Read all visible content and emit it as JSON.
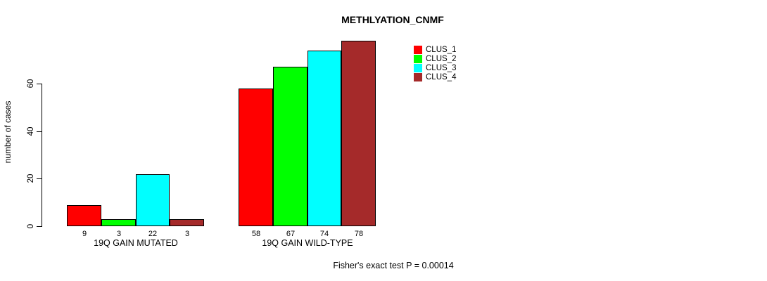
{
  "header": {
    "title": "METHLYATION_CNMF"
  },
  "footer": {
    "stat_text": "Fisher's exact test P = 0.00014"
  },
  "legend": {
    "items": [
      {
        "label": "CLUS_1",
        "color": "#FF0000"
      },
      {
        "label": "CLUS_2",
        "color": "#00FF00"
      },
      {
        "label": "CLUS_3",
        "color": "#00FFFF"
      },
      {
        "label": "CLUS_4",
        "color": "#A52A2A"
      }
    ]
  },
  "chart_data": {
    "type": "bar",
    "title": "METHLYATION_CNMF",
    "categories": [
      "19Q GAIN MUTATED",
      "19Q GAIN WILD-TYPE"
    ],
    "series": [
      {
        "name": "CLUS_1",
        "color": "#FF0000",
        "values": [
          9,
          58
        ]
      },
      {
        "name": "CLUS_2",
        "color": "#00FF00",
        "values": [
          3,
          67
        ]
      },
      {
        "name": "CLUS_3",
        "color": "#00FFFF",
        "values": [
          22,
          74
        ]
      },
      {
        "name": "CLUS_4",
        "color": "#A52A2A",
        "values": [
          3,
          78
        ]
      }
    ],
    "ylabel": "number of cases",
    "xlabel": "",
    "yticks": [
      0,
      20,
      40,
      60
    ],
    "ylim": [
      0,
      80
    ],
    "bar_value_labels": true,
    "grid": false,
    "legend_position": "top-right-outside",
    "annotation": "Fisher's exact test P = 0.00014"
  }
}
